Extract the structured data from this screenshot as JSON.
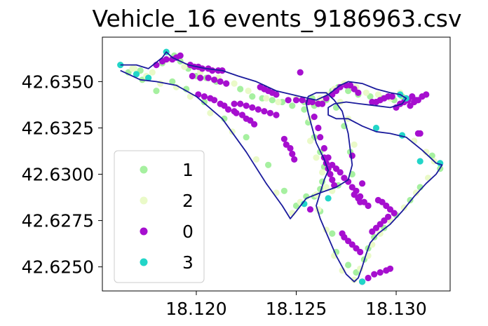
{
  "chart_data": {
    "type": "scatter",
    "title": "Vehicle_16 events_9186963.csv",
    "xlabel": "",
    "ylabel": "",
    "xlim": [
      18.1153,
      18.1327
    ],
    "ylim": [
      42.6237,
      42.6374
    ],
    "xticks": [
      18.12,
      18.125,
      18.13
    ],
    "xtick_labels": [
      "18.120",
      "18.125",
      "18.130"
    ],
    "yticks": [
      42.625,
      42.6275,
      42.63,
      42.6325,
      42.635
    ],
    "ytick_labels": [
      "42.6250",
      "42.6275",
      "42.6300",
      "42.6325",
      "42.6350"
    ],
    "grid": false,
    "legend_position": "lower-left",
    "track": {
      "color": "#1a1a9c",
      "x": [
        18.1162,
        18.117,
        18.1176,
        18.1183,
        18.1185,
        18.1188,
        18.1196,
        18.1205,
        18.1213,
        18.1221,
        18.123,
        18.124,
        18.1252,
        18.126,
        18.1266,
        18.1272,
        18.1276,
        18.1283,
        18.129,
        18.1297,
        18.1302,
        18.1305,
        18.1303,
        18.1297,
        18.129,
        18.1282,
        18.1275,
        18.1269,
        18.1266,
        18.1266,
        18.127,
        18.1276,
        18.1283,
        18.129,
        18.1297,
        18.1305,
        18.1313,
        18.132,
        18.1323,
        18.132,
        18.1315,
        18.1309,
        18.1303,
        18.1297,
        18.1291,
        18.1287,
        18.1285,
        18.1283,
        18.1281,
        18.1279,
        18.1275,
        18.127,
        18.1266,
        18.1262,
        18.126,
        18.1262,
        18.1264,
        18.1266,
        18.1264,
        18.126,
        18.1258,
        18.1256,
        18.1255,
        18.1256,
        18.126,
        18.1265,
        18.1269,
        18.1273,
        18.1276,
        18.1278,
        18.1276,
        18.127,
        18.1262,
        18.1255,
        18.125,
        18.1247,
        18.1243,
        18.1235,
        18.1225,
        18.1213,
        18.12,
        18.119,
        18.118,
        18.1172,
        18.1166,
        18.1162
      ],
      "y": [
        42.6359,
        42.6359,
        42.6357,
        42.6363,
        42.6366,
        42.6363,
        42.6359,
        42.6357,
        42.6356,
        42.6353,
        42.635,
        42.6345,
        42.6342,
        42.634,
        42.6343,
        42.6348,
        42.635,
        42.6349,
        42.6346,
        42.6344,
        42.6343,
        42.6341,
        42.6338,
        42.6336,
        42.6337,
        42.6338,
        42.6339,
        42.6338,
        42.6336,
        42.6332,
        42.633,
        42.633,
        42.6326,
        42.6323,
        42.6322,
        42.632,
        42.6313,
        42.6306,
        42.6305,
        42.63,
        42.6295,
        42.6288,
        42.628,
        42.6273,
        42.6268,
        42.6263,
        42.6257,
        42.625,
        42.6244,
        42.6242,
        42.6246,
        42.6256,
        42.6266,
        42.6276,
        42.6283,
        42.629,
        42.6297,
        42.6302,
        42.6308,
        42.6317,
        42.6325,
        42.6333,
        42.6338,
        42.6342,
        42.6344,
        42.6344,
        42.634,
        42.6334,
        42.6322,
        42.6305,
        42.6297,
        42.6293,
        42.629,
        42.6287,
        42.628,
        42.6276,
        42.6283,
        42.6295,
        42.6312,
        42.633,
        42.6342,
        42.6348,
        42.635,
        42.6351,
        42.6354,
        42.6356
      ]
    },
    "series": [
      {
        "name": "1",
        "color": "#a6f0a0",
        "x": [
          18.1172,
          18.1176,
          18.1183,
          18.1189,
          18.1192,
          18.1196,
          18.12,
          18.1205,
          18.121,
          18.1215,
          18.1222,
          18.1228,
          18.1233,
          18.1238,
          18.1243,
          18.1248,
          18.1254,
          18.1259,
          18.1265,
          18.1268,
          18.1271,
          18.1276,
          18.1281,
          18.1287,
          18.1293,
          18.1299,
          18.1303,
          18.1306,
          18.1318,
          18.1322,
          18.1312,
          18.1307,
          18.13,
          18.1294,
          18.1289,
          18.1286,
          18.1284,
          18.128,
          18.1276,
          18.127,
          18.1268,
          18.1262,
          18.1259,
          18.1263,
          18.1264,
          18.1262,
          18.1259,
          18.1256,
          18.1254,
          18.1258,
          18.1264,
          18.127,
          18.1274,
          18.1277,
          18.1278,
          18.1271,
          18.1262,
          18.1255,
          18.125,
          18.1244,
          18.1236,
          18.1225,
          18.1214,
          18.1204,
          18.1195,
          18.1188,
          18.118,
          18.1173,
          18.1166
        ],
        "y": [
          42.6356,
          42.6352,
          42.636,
          42.6364,
          42.6361,
          42.6357,
          42.6353,
          42.6352,
          42.635,
          42.6349,
          42.6346,
          42.6342,
          42.6341,
          42.634,
          42.6339,
          42.6337,
          42.6339,
          42.6337,
          42.634,
          42.6345,
          42.6347,
          42.6345,
          42.6343,
          42.6342,
          42.6341,
          42.634,
          42.6342,
          42.634,
          42.631,
          42.6303,
          42.6293,
          42.6286,
          42.6278,
          42.6271,
          42.6266,
          42.626,
          42.6254,
          42.6247,
          42.6251,
          42.6258,
          42.6268,
          42.628,
          42.6288,
          42.6296,
          42.6304,
          42.6312,
          42.632,
          42.6328,
          42.6335,
          42.6341,
          42.634,
          42.6336,
          42.6326,
          42.6312,
          42.63,
          42.6294,
          42.6292,
          42.6288,
          42.6283,
          42.6291,
          42.6305,
          42.632,
          42.633,
          42.6339,
          42.6346,
          42.635,
          42.6345,
          42.6351,
          42.6355
        ]
      },
      {
        "name": "2",
        "color": "#eafac8",
        "x": [
          18.1168,
          18.1178,
          18.1186,
          18.1194,
          18.1202,
          18.1211,
          18.1219,
          18.1226,
          18.1235,
          18.1241,
          18.125,
          18.1257,
          18.1262,
          18.1269,
          18.1274,
          18.128,
          18.1285,
          18.1291,
          18.1297,
          18.1302,
          18.1309,
          18.1315,
          18.1319,
          18.1316,
          18.131,
          18.1304,
          18.1297,
          18.1292,
          18.1288,
          18.1286,
          18.1282,
          18.1279,
          18.1273,
          18.1269,
          18.1265,
          18.1261,
          18.1265,
          18.1263,
          18.126,
          18.1257,
          18.1257,
          18.1261,
          18.1266,
          18.1272,
          18.1276,
          18.1279,
          18.1268,
          18.126,
          18.1252,
          18.1248,
          18.124,
          18.123,
          18.1218,
          18.1207,
          18.1197,
          18.119,
          18.1182,
          18.1175,
          18.1169
        ],
        "y": [
          42.6357,
          42.6355,
          42.6362,
          42.6358,
          42.6355,
          42.6352,
          42.6349,
          42.6345,
          42.6341,
          42.6339,
          42.6341,
          42.6339,
          42.6341,
          42.6346,
          42.6349,
          42.6347,
          42.6344,
          42.6343,
          42.6341,
          42.6344,
          42.6318,
          42.6312,
          42.6307,
          42.6298,
          42.629,
          42.6282,
          42.6275,
          42.6268,
          42.6262,
          42.6256,
          42.6249,
          42.6243,
          42.6248,
          42.6256,
          42.627,
          42.6281,
          42.6293,
          42.6301,
          42.6309,
          42.6318,
          42.633,
          42.6339,
          42.6343,
          42.6339,
          42.633,
          42.6316,
          42.6291,
          42.6289,
          42.6285,
          42.6279,
          42.629,
          42.6308,
          42.6323,
          42.6333,
          42.6342,
          42.6347,
          42.6349,
          42.6353,
          42.6357
        ]
      },
      {
        "name": "0",
        "color": "#a60fcf",
        "x": [
          18.118,
          18.1183,
          18.1185,
          18.1188,
          18.119,
          18.1192,
          18.1197,
          18.1199,
          18.1201,
          18.1203,
          18.1206,
          18.1208,
          18.1211,
          18.1213,
          18.1198,
          18.1202,
          18.1206,
          18.1209,
          18.1212,
          18.1215,
          18.1201,
          18.1204,
          18.1207,
          18.1209,
          18.1212,
          18.1214,
          18.1216,
          18.1219,
          18.122,
          18.1223,
          18.1225,
          18.1227,
          18.1229,
          18.1219,
          18.1222,
          18.1225,
          18.1228,
          18.1231,
          18.1234,
          18.1237,
          18.124,
          18.1232,
          18.1234,
          18.1236,
          18.1238,
          18.124,
          18.1246,
          18.125,
          18.1253,
          18.1256,
          18.1258,
          18.1261,
          18.1263,
          18.1259,
          18.1261,
          18.1262,
          18.1264,
          18.1266,
          18.1268,
          18.127,
          18.1272,
          18.1274,
          18.1276,
          18.1278,
          18.128,
          18.1282,
          18.1284,
          18.1286,
          18.1283,
          18.1286,
          18.1289,
          18.1292,
          18.1295,
          18.1297,
          18.1265,
          18.1268,
          18.127,
          18.1272,
          18.1275,
          18.1277,
          18.1279,
          18.1281,
          18.1278,
          18.1283,
          18.1291,
          18.1293,
          18.1295,
          18.1297,
          18.1299,
          18.1311,
          18.1312,
          18.1307,
          18.1309,
          18.131,
          18.1288,
          18.129,
          18.1292,
          18.1294,
          18.1296,
          18.1273,
          18.1274,
          18.1276,
          18.1278,
          18.128,
          18.1282,
          18.1288,
          18.129,
          18.1292,
          18.1294,
          18.1296,
          18.1298,
          18.13,
          18.1302,
          18.1304,
          18.1306,
          18.1308,
          18.1311,
          18.1313,
          18.1315,
          18.1244,
          18.1245,
          18.1247,
          18.1248,
          18.1249,
          18.1257,
          18.1264,
          18.1265,
          18.1266,
          18.1267,
          18.1268,
          18.1269,
          18.1279,
          18.1281,
          18.1282,
          18.1252
        ],
        "y": [
          42.6359,
          42.6361,
          42.6362,
          42.6362,
          42.6363,
          42.6364,
          42.6359,
          42.6358,
          42.6358,
          42.6357,
          42.6357,
          42.6356,
          42.6356,
          42.6356,
          42.6353,
          42.6352,
          42.6352,
          42.6351,
          42.635,
          42.6349,
          42.6343,
          42.6342,
          42.6341,
          42.634,
          42.6338,
          42.6337,
          42.6335,
          42.6334,
          42.6333,
          42.6332,
          42.633,
          42.6329,
          42.6327,
          42.6338,
          42.6338,
          42.6337,
          42.6336,
          42.6335,
          42.6334,
          42.6333,
          42.6332,
          42.6347,
          42.6346,
          42.6345,
          42.6344,
          42.6343,
          42.634,
          42.634,
          42.634,
          42.6339,
          42.6339,
          42.6338,
          42.6338,
          42.6331,
          42.6325,
          42.632,
          42.6314,
          42.6309,
          42.6305,
          42.6303,
          42.6301,
          42.6298,
          42.6296,
          42.6293,
          42.6291,
          42.6288,
          42.6285,
          42.6283,
          42.6242,
          42.6244,
          42.6246,
          42.6247,
          42.6248,
          42.6249,
          42.6341,
          42.6343,
          42.6345,
          42.6347,
          42.6348,
          42.6348,
          42.6346,
          42.6344,
          42.631,
          42.6295,
          42.6286,
          42.6285,
          42.6283,
          42.6281,
          42.6279,
          42.6322,
          42.6322,
          42.6337,
          42.6339,
          42.634,
          42.6269,
          42.6271,
          42.6273,
          42.6275,
          42.6277,
          42.6268,
          42.6266,
          42.6264,
          42.6262,
          42.626,
          42.6258,
          42.6339,
          42.6339,
          42.634,
          42.6341,
          42.6342,
          42.6342,
          42.6336,
          42.6338,
          42.6339,
          42.634,
          42.6342,
          42.634,
          42.6342,
          42.6343,
          42.6319,
          42.6316,
          42.6314,
          42.6311,
          42.6308,
          42.6281,
          42.6309,
          42.6306,
          42.6303,
          42.63,
          42.6297,
          42.6294,
          42.6289,
          42.6287,
          42.6285,
          42.6355
        ]
      },
      {
        "name": "3",
        "color": "#22d5c8",
        "x": [
          18.1162,
          18.117,
          18.1176,
          18.1185,
          18.1254,
          18.1266,
          18.1283,
          18.129,
          18.1302,
          18.1305,
          18.1303,
          18.1312,
          18.1322
        ],
        "y": [
          42.6359,
          42.6354,
          42.6352,
          42.6366,
          42.6284,
          42.6287,
          42.6242,
          42.6325,
          42.6343,
          42.6341,
          42.6321,
          42.6307,
          42.6306
        ]
      }
    ]
  }
}
